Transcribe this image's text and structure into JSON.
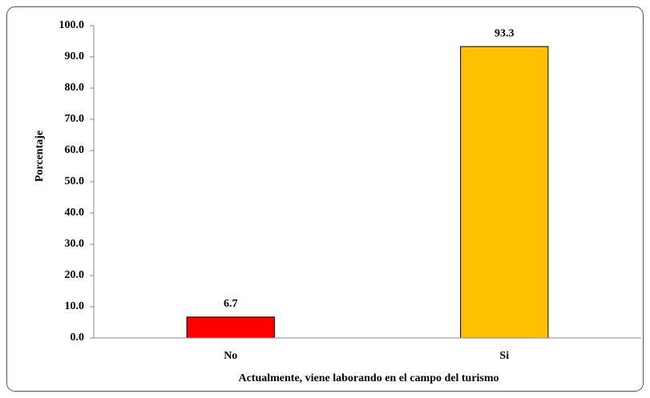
{
  "chart_data": {
    "type": "bar",
    "categories": [
      "No",
      "Si"
    ],
    "values": [
      6.7,
      93.3
    ],
    "colors": [
      "#ff0000",
      "#ffc000"
    ],
    "ylabel": "Porcentaje",
    "xlabel": "Actualmente, viene laborando en el campo del turismo",
    "ylim": [
      0,
      100
    ],
    "yticks": [
      {
        "value": 0,
        "label": "0.0"
      },
      {
        "value": 10,
        "label": "10.0"
      },
      {
        "value": 20,
        "label": "20.0"
      },
      {
        "value": 30,
        "label": "30.0"
      },
      {
        "value": 40,
        "label": "40.0"
      },
      {
        "value": 50,
        "label": "50.0"
      },
      {
        "value": 60,
        "label": "60.0"
      },
      {
        "value": 70,
        "label": "70.0"
      },
      {
        "value": 80,
        "label": "80.0"
      },
      {
        "value": 90,
        "label": "90.0"
      },
      {
        "value": 100,
        "label": "100.0"
      }
    ],
    "grid": false
  }
}
